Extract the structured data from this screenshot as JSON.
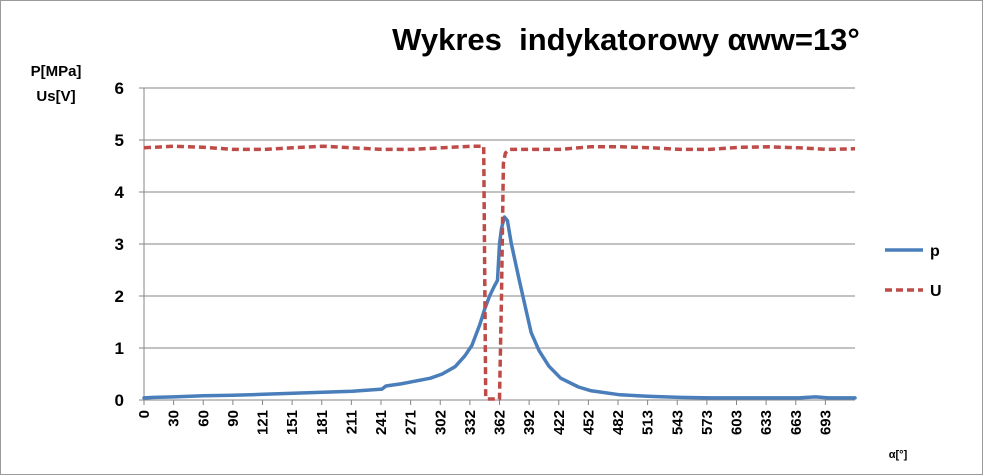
{
  "chart_data": {
    "type": "line",
    "title": "Wykres  indykatorowy αww=13°",
    "ylabel_line1": "P[MPa]",
    "ylabel_line2": "Us[V]",
    "xlabel": "α[°]",
    "ylim": [
      0,
      6
    ],
    "xlim": [
      0,
      720
    ],
    "y_ticks": [
      "0",
      "1",
      "2",
      "3",
      "4",
      "5",
      "6"
    ],
    "x_ticks": [
      0,
      30,
      60,
      90,
      121,
      151,
      181,
      211,
      241,
      271,
      302,
      332,
      362,
      392,
      422,
      452,
      482,
      513,
      543,
      573,
      603,
      633,
      663,
      693
    ],
    "grid": "horizontal",
    "legend_position": "right",
    "series": [
      {
        "name": "p",
        "color": "#4a7ebb",
        "style": "solid",
        "x": [
          0,
          10,
          30,
          60,
          90,
          121,
          151,
          181,
          211,
          241,
          245,
          260,
          271,
          290,
          302,
          315,
          325,
          332,
          340,
          345,
          350,
          355,
          358,
          360,
          362,
          365,
          368,
          372,
          380,
          392,
          400,
          410,
          422,
          440,
          452,
          482,
          513,
          543,
          573,
          603,
          633,
          663,
          680,
          693,
          720
        ],
        "values": [
          0.04,
          0.05,
          0.06,
          0.08,
          0.09,
          0.11,
          0.13,
          0.15,
          0.17,
          0.21,
          0.27,
          0.31,
          0.35,
          0.42,
          0.5,
          0.64,
          0.85,
          1.05,
          1.45,
          1.75,
          2.0,
          2.2,
          2.3,
          3.0,
          3.3,
          3.52,
          3.45,
          3.0,
          2.3,
          1.3,
          0.95,
          0.65,
          0.42,
          0.25,
          0.18,
          0.1,
          0.07,
          0.05,
          0.04,
          0.04,
          0.04,
          0.04,
          0.06,
          0.04,
          0.04
        ]
      },
      {
        "name": "U",
        "color": "#be4b48",
        "style": "dashed",
        "x": [
          0,
          30,
          60,
          90,
          121,
          151,
          181,
          211,
          241,
          271,
          302,
          332,
          344,
          346,
          348,
          352,
          356,
          360,
          362,
          364,
          366,
          370,
          392,
          422,
          452,
          482,
          513,
          543,
          573,
          603,
          633,
          663,
          693,
          720
        ],
        "values": [
          4.85,
          4.88,
          4.86,
          4.82,
          4.82,
          4.85,
          4.88,
          4.85,
          4.82,
          4.82,
          4.85,
          4.88,
          4.88,
          0.05,
          0.02,
          0.02,
          0.02,
          0.02,
          2.0,
          4.55,
          4.75,
          4.82,
          4.82,
          4.82,
          4.87,
          4.87,
          4.85,
          4.82,
          4.82,
          4.86,
          4.87,
          4.85,
          4.82,
          4.83
        ]
      }
    ]
  }
}
